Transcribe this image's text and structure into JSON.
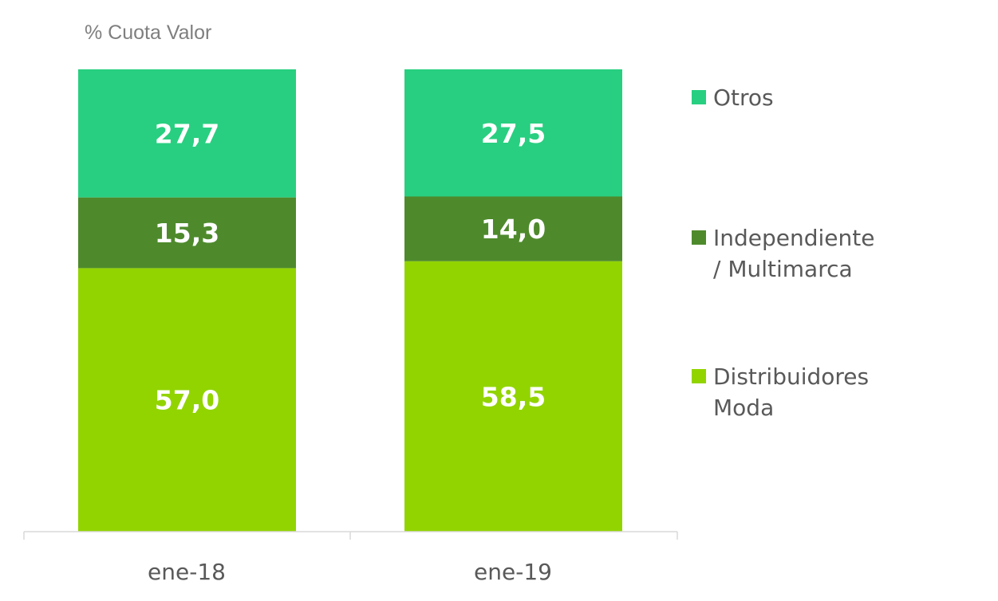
{
  "chart_data": {
    "type": "bar",
    "stacked": true,
    "ylabel": "% Cuota Valor",
    "categories": [
      "ene-18",
      "ene-19"
    ],
    "ylim": [
      0,
      100
    ],
    "grid": false,
    "legend_position": "right",
    "series": [
      {
        "name": "Distribuidores Moda",
        "legend_lines": [
          "Distribuidores",
          "Moda"
        ],
        "values": [
          57.0,
          58.5
        ],
        "labels": [
          "57,0",
          "58,5"
        ],
        "color": "#92d400"
      },
      {
        "name": "Independiente / Multimarca",
        "legend_lines": [
          "Independiente",
          "/ Multimarca"
        ],
        "values": [
          15.3,
          14.0
        ],
        "labels": [
          "15,3",
          "14,0"
        ],
        "color": "#4e8a2c"
      },
      {
        "name": "Otros",
        "legend_lines": [
          "Otros"
        ],
        "values": [
          27.7,
          27.5
        ],
        "labels": [
          "27,7",
          "27,5"
        ],
        "color": "#28cf80"
      }
    ]
  }
}
